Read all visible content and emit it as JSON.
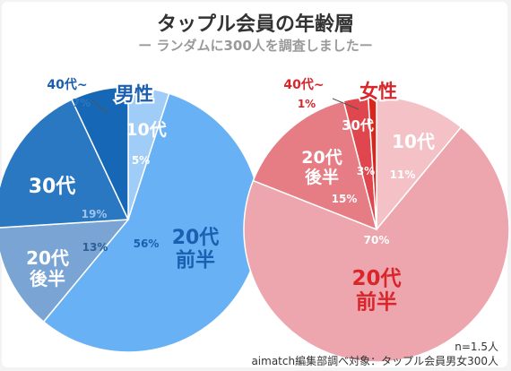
{
  "title": "タップル会員の年齢層",
  "subtitle": "ー ランダムに300人を調査しましたー",
  "chart_data": [
    {
      "type": "pie",
      "name": "男性",
      "categories": [
        "10代",
        "20代前半",
        "20代後半",
        "30代",
        "40代~"
      ],
      "values": [
        5,
        56,
        13,
        19,
        7
      ],
      "value_labels": [
        "5%",
        "56%",
        "13%",
        "19%",
        "7%"
      ],
      "colors": [
        "#9fcdf8",
        "#68b1f4",
        "#7aa4d3",
        "#2b78c2",
        "#1667b5"
      ]
    },
    {
      "type": "pie",
      "name": "女性",
      "categories": [
        "10代",
        "20代前半",
        "20代後半",
        "30代",
        "40代~"
      ],
      "values": [
        11,
        70,
        15,
        3,
        1
      ],
      "value_labels": [
        "11%",
        "70%",
        "15%",
        "3%",
        "1%"
      ],
      "colors": [
        "#f3c1c6",
        "#eda5ae",
        "#e67c84",
        "#e0464d",
        "#d9261d"
      ]
    }
  ],
  "footer": {
    "n": "n=1.5人",
    "source": "aimatch編集部調べ対象：タップル会員男女300人"
  }
}
